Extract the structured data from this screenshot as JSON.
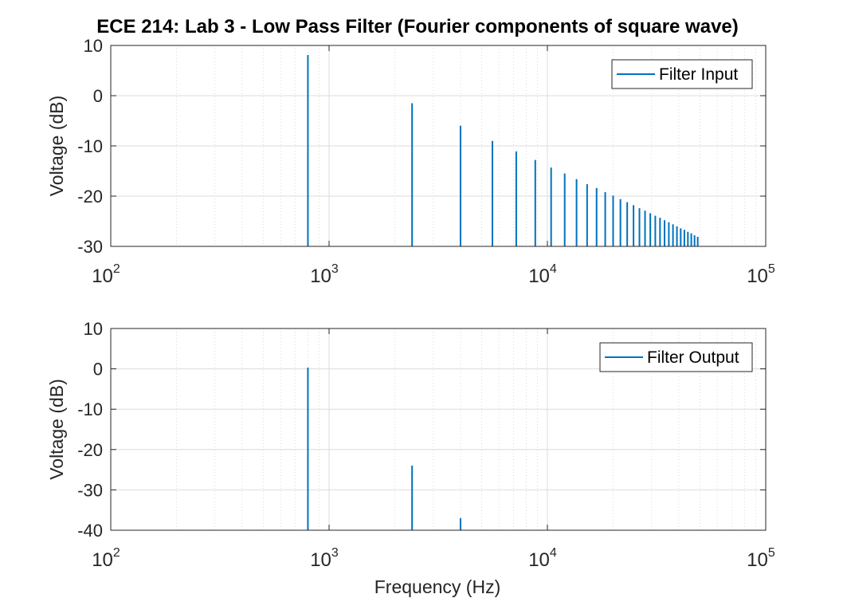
{
  "title": "ECE 214: Lab 3 - Low Pass Filter (Fourier components of square wave)",
  "colors": {
    "series": "#0072BD",
    "grid": "#dcdcdc",
    "axis": "#262626"
  },
  "chart_data": [
    {
      "type": "bar",
      "xscale": "log",
      "xlim": [
        100,
        100000
      ],
      "ylim": [
        -30,
        10
      ],
      "yticks": [
        -30,
        -20,
        -10,
        0,
        10
      ],
      "xticks": [
        100,
        1000,
        10000,
        100000
      ],
      "xtick_labels": [
        {
          "base": "10",
          "exp": "2"
        },
        {
          "base": "10",
          "exp": "3"
        },
        {
          "base": "10",
          "exp": "4"
        },
        {
          "base": "10",
          "exp": "5"
        }
      ],
      "ylabel": "Voltage (dB)",
      "xlabel": "",
      "grid": true,
      "legend": "top-right",
      "series": [
        {
          "name": "Filter Input",
          "x": [
            800,
            2400,
            4000,
            5600,
            7200,
            8800,
            10400,
            12000,
            13600,
            15200,
            16800,
            18400,
            20000,
            21600,
            23200,
            24800,
            26400,
            28000,
            29600,
            31200,
            32800,
            34400,
            36000,
            37600,
            39200,
            40800,
            42400,
            44000,
            45600,
            47200,
            48800
          ],
          "values": [
            8.1,
            -1.5,
            -6.0,
            -9.0,
            -11.1,
            -12.8,
            -14.3,
            -15.5,
            -16.6,
            -17.6,
            -18.4,
            -19.2,
            -19.9,
            -20.6,
            -21.2,
            -21.8,
            -22.4,
            -22.9,
            -23.4,
            -23.9,
            -24.3,
            -24.8,
            -25.2,
            -25.6,
            -26.0,
            -26.4,
            -26.7,
            -27.1,
            -27.4,
            -27.8,
            -28.1
          ]
        }
      ]
    },
    {
      "type": "bar",
      "xscale": "log",
      "xlim": [
        100,
        100000
      ],
      "ylim": [
        -40,
        10
      ],
      "yticks": [
        -40,
        -30,
        -20,
        -10,
        0,
        10
      ],
      "xticks": [
        100,
        1000,
        10000,
        100000
      ],
      "xtick_labels": [
        {
          "base": "10",
          "exp": "2"
        },
        {
          "base": "10",
          "exp": "3"
        },
        {
          "base": "10",
          "exp": "4"
        },
        {
          "base": "10",
          "exp": "5"
        }
      ],
      "ylabel": "Voltage (dB)",
      "xlabel": "Frequency (Hz)",
      "grid": true,
      "legend": "top-right",
      "series": [
        {
          "name": "Filter Output",
          "x": [
            800,
            2400,
            4000
          ],
          "values": [
            0.3,
            -24.0,
            -37.0
          ]
        }
      ]
    }
  ]
}
